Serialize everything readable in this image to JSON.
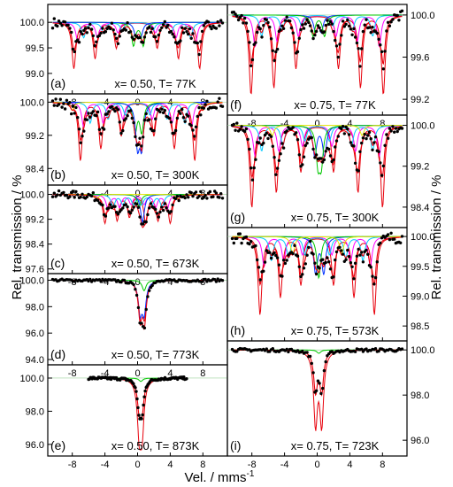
{
  "figure": {
    "ylabel_left": "Rel. transmission / %",
    "ylabel_right": "Rel. transmission / %",
    "xlabel": "Vel. / mms",
    "xlabel_sup": "-1"
  },
  "colors": {
    "data_points": "#000000",
    "total_fit": "#e8000b",
    "components": [
      "#0030ff",
      "#00c800",
      "#00c8ff",
      "#ff00ff",
      "#e6e600",
      "#ff9900"
    ]
  },
  "chart_data": [
    {
      "type": "scatter",
      "panel": "(a)",
      "caption": "x= 0.50, T= 77K",
      "ylim": [
        98.6,
        100.35
      ],
      "yticks": [
        "100.0",
        "99.5",
        "99.0"
      ],
      "xlim": [
        -11,
        11
      ],
      "xticks": [
        "-8",
        "-4",
        "0",
        "4",
        "8"
      ],
      "baseline": 100.0,
      "noise": 0.1,
      "components": [
        {
          "color": "#e8000b",
          "lines": [
            [
              -7.8,
              0.9
            ],
            [
              -5.2,
              0.7
            ],
            [
              -2.6,
              0.5
            ],
            [
              2.4,
              0.5
            ],
            [
              5.0,
              0.7
            ],
            [
              7.6,
              0.9
            ]
          ]
        },
        {
          "color": "#ff00ff",
          "lines": [
            [
              -7.3,
              0.4
            ],
            [
              -4.9,
              0.3
            ],
            [
              -2.4,
              0.2
            ],
            [
              2.2,
              0.2
            ],
            [
              4.7,
              0.3
            ],
            [
              7.1,
              0.4
            ]
          ]
        },
        {
          "color": "#00c8ff",
          "lines": [
            [
              -6.6,
              0.3
            ],
            [
              -4.2,
              0.2
            ],
            [
              -1.9,
              0.15
            ],
            [
              1.9,
              0.15
            ],
            [
              4.1,
              0.2
            ],
            [
              6.5,
              0.3
            ]
          ]
        },
        {
          "color": "#00c800",
          "lines": [
            [
              -0.5,
              0.45
            ],
            [
              0.7,
              0.45
            ]
          ]
        },
        {
          "color": "#0030ff",
          "lines": [
            [
              -0.2,
              0.25
            ],
            [
              0.4,
              0.25
            ]
          ]
        }
      ]
    },
    {
      "type": "scatter",
      "panel": "(b)",
      "caption": "x= 0.50, T= 300K",
      "ylim": [
        98.0,
        100.2
      ],
      "yticks": [
        "100.0",
        "99.2",
        "98.4"
      ],
      "xlim": [
        -11,
        11
      ],
      "xticks": [
        "-8",
        "-4",
        "0",
        "4",
        "8"
      ],
      "baseline": 100.0,
      "noise": 0.12,
      "components": [
        {
          "color": "#e8000b",
          "lines": [
            [
              -7.0,
              1.4
            ],
            [
              -4.5,
              1.1
            ],
            [
              -2.0,
              0.8
            ],
            [
              2.0,
              0.8
            ],
            [
              4.5,
              1.1
            ],
            [
              7.0,
              1.4
            ]
          ]
        },
        {
          "color": "#ff00ff",
          "lines": [
            [
              -6.6,
              0.6
            ],
            [
              -4.2,
              0.5
            ],
            [
              -1.8,
              0.4
            ],
            [
              1.8,
              0.4
            ],
            [
              4.2,
              0.5
            ],
            [
              6.6,
              0.6
            ]
          ]
        },
        {
          "color": "#00c8ff",
          "lines": [
            [
              -5.8,
              0.5
            ],
            [
              -3.6,
              0.4
            ],
            [
              -1.5,
              0.3
            ],
            [
              1.5,
              0.3
            ],
            [
              3.6,
              0.4
            ],
            [
              5.8,
              0.5
            ]
          ]
        },
        {
          "color": "#00c800",
          "lines": [
            [
              -0.3,
              0.7
            ],
            [
              0.5,
              0.7
            ]
          ]
        },
        {
          "color": "#0030ff",
          "lines": [
            [
              0.0,
              1.0
            ],
            [
              0.5,
              1.0
            ]
          ]
        },
        {
          "color": "#e6e600",
          "lines": [
            [
              -8.0,
              0.2
            ],
            [
              8.0,
              0.2
            ]
          ]
        }
      ]
    },
    {
      "type": "scatter",
      "panel": "(c)",
      "caption": "x= 0.50, T= 673K",
      "ylim": [
        97.45,
        100.3
      ],
      "yticks": [
        "100.0",
        "99.2",
        "98.4",
        "97.6"
      ],
      "xlim": [
        -11,
        11
      ],
      "xticks": [
        "-8",
        "-4",
        "0",
        "4",
        "8"
      ],
      "baseline": 100.0,
      "noise": 0.12,
      "components": [
        {
          "color": "#e8000b",
          "lines": [
            [
              -4.0,
              0.9
            ],
            [
              -2.5,
              0.8
            ],
            [
              -1.0,
              0.7
            ],
            [
              1.0,
              0.9
            ],
            [
              2.5,
              0.8
            ],
            [
              4.0,
              0.9
            ]
          ]
        },
        {
          "color": "#ff00ff",
          "lines": [
            [
              -3.6,
              0.5
            ],
            [
              -2.2,
              0.4
            ],
            [
              -0.8,
              0.3
            ],
            [
              0.8,
              0.3
            ],
            [
              2.2,
              0.4
            ],
            [
              3.6,
              0.5
            ]
          ]
        },
        {
          "color": "#00c8ff",
          "lines": [
            [
              -3.0,
              0.4
            ],
            [
              -1.8,
              0.3
            ],
            [
              -0.5,
              0.3
            ],
            [
              0.5,
              0.3
            ],
            [
              1.8,
              0.3
            ],
            [
              3.0,
              0.4
            ]
          ]
        },
        {
          "color": "#0030ff",
          "lines": [
            [
              0.6,
              0.9
            ]
          ]
        },
        {
          "color": "#00c800",
          "lines": [
            [
              0.2,
              0.4
            ]
          ]
        },
        {
          "color": "#e6e600",
          "lines": [
            [
              -5.0,
              0.15
            ],
            [
              5.0,
              0.15
            ]
          ]
        }
      ]
    },
    {
      "type": "scatter",
      "panel": "(d)",
      "caption": "x= 0.50, T= 773K",
      "ylim": [
        93.6,
        100.5
      ],
      "yticks": [
        "100.0",
        "98.0",
        "96.0",
        "94.0"
      ],
      "xlim": [
        -11,
        11
      ],
      "xticks": [
        "-8",
        "-4",
        "0",
        "4",
        "8"
      ],
      "baseline": 100.0,
      "noise": 0.1,
      "components": [
        {
          "color": "#e8000b",
          "lines": [
            [
              0.35,
              2.5
            ],
            [
              0.85,
              2.5
            ]
          ]
        },
        {
          "color": "#0030ff",
          "lines": [
            [
              0.3,
              2.3
            ],
            [
              0.8,
              2.3
            ]
          ]
        },
        {
          "color": "#00c800",
          "lines": [
            [
              0.8,
              0.8
            ]
          ]
        }
      ]
    },
    {
      "type": "scatter",
      "panel": "(e)",
      "caption": "x= 0.50, T= 873K",
      "ylim": [
        95.3,
        100.8
      ],
      "yticks": [
        "100.0",
        "98.0",
        "96.0"
      ],
      "xlim": [
        -11,
        11
      ],
      "xticks": [],
      "xrange_points": [
        -6.0,
        6.0
      ],
      "baseline": 100.0,
      "noise": 0.08,
      "components": [
        {
          "color": "#e8000b",
          "lines": [
            [
              0.2,
              3.0
            ],
            [
              0.55,
              3.0
            ]
          ]
        },
        {
          "color": "#00c800",
          "lines": [
            [
              0.4,
              0.2
            ]
          ]
        }
      ]
    },
    {
      "type": "scatter",
      "panel": "(f)",
      "caption": "x= 0.75, T= 77K",
      "ylim": [
        99.05,
        100.1
      ],
      "yticks": [
        "100.0",
        "99.6",
        "99.2"
      ],
      "xlim": [
        -11,
        11
      ],
      "xticks": [
        "-8",
        "-4",
        "0",
        "4",
        "8"
      ],
      "baseline": 100.0,
      "noise": 0.05,
      "components": [
        {
          "color": "#e8000b",
          "lines": [
            [
              -8.1,
              0.75
            ],
            [
              -5.3,
              0.68
            ],
            [
              -2.6,
              0.5
            ],
            [
              2.6,
              0.5
            ],
            [
              5.3,
              0.68
            ],
            [
              8.1,
              0.75
            ]
          ]
        },
        {
          "color": "#ff00ff",
          "lines": [
            [
              -7.6,
              0.3
            ],
            [
              -4.9,
              0.25
            ],
            [
              -2.3,
              0.2
            ],
            [
              2.3,
              0.2
            ],
            [
              4.9,
              0.25
            ],
            [
              7.6,
              0.3
            ]
          ]
        },
        {
          "color": "#00c8ff",
          "lines": [
            [
              -6.8,
              0.2
            ],
            [
              -4.3,
              0.15
            ],
            [
              -1.9,
              0.1
            ],
            [
              1.9,
              0.1
            ],
            [
              4.3,
              0.15
            ],
            [
              6.8,
              0.2
            ]
          ]
        },
        {
          "color": "#0030ff",
          "lines": [
            [
              -0.2,
              0.15
            ],
            [
              0.5,
              0.15
            ]
          ]
        },
        {
          "color": "#00c800",
          "lines": [
            [
              -0.5,
              0.2
            ],
            [
              0.9,
              0.2
            ]
          ]
        }
      ]
    },
    {
      "type": "scatter",
      "panel": "(g)",
      "caption": "x= 0.75, T= 300K",
      "ylim": [
        98.0,
        100.2
      ],
      "yticks": [
        "100.0",
        "99.2",
        "98.4"
      ],
      "xlim": [
        -11,
        11
      ],
      "xticks": [],
      "baseline": 100.0,
      "noise": 0.1,
      "components": [
        {
          "color": "#e8000b",
          "lines": [
            [
              -8.0,
              1.6
            ],
            [
              -5.0,
              1.3
            ],
            [
              -2.0,
              0.9
            ],
            [
              2.0,
              0.9
            ],
            [
              5.0,
              1.3
            ],
            [
              8.0,
              1.6
            ]
          ]
        },
        {
          "color": "#ff00ff",
          "lines": [
            [
              -7.6,
              0.6
            ],
            [
              -4.7,
              0.5
            ],
            [
              -1.8,
              0.4
            ],
            [
              1.8,
              0.4
            ],
            [
              4.7,
              0.5
            ],
            [
              7.6,
              0.6
            ]
          ]
        },
        {
          "color": "#00c8ff",
          "lines": [
            [
              -6.8,
              0.5
            ],
            [
              -4.2,
              0.4
            ],
            [
              -1.5,
              0.3
            ],
            [
              1.5,
              0.3
            ],
            [
              4.2,
              0.4
            ],
            [
              6.8,
              0.5
            ]
          ]
        },
        {
          "color": "#0030ff",
          "lines": [
            [
              -0.3,
              0.6
            ],
            [
              0.9,
              0.6
            ]
          ]
        },
        {
          "color": "#00c800",
          "lines": [
            [
              0.1,
              0.7
            ],
            [
              0.5,
              0.7
            ]
          ]
        },
        {
          "color": "#e6e600",
          "lines": [
            [
              -5.5,
              0.2
            ],
            [
              5.5,
              0.2
            ]
          ]
        }
      ]
    },
    {
      "type": "scatter",
      "panel": "(h)",
      "caption": "x= 0.75, T= 573K",
      "ylim": [
        98.25,
        100.15
      ],
      "yticks": [
        "100.0",
        "99.5",
        "99.0",
        "98.5"
      ],
      "xlim": [
        -11,
        11
      ],
      "xticks": [],
      "baseline": 100.0,
      "noise": 0.1,
      "components": [
        {
          "color": "#e8000b",
          "lines": [
            [
              -7.0,
              1.3
            ],
            [
              -4.5,
              1.0
            ],
            [
              -2.0,
              0.8
            ],
            [
              2.0,
              0.8
            ],
            [
              4.5,
              1.0
            ],
            [
              7.0,
              1.3
            ]
          ]
        },
        {
          "color": "#ff00ff",
          "lines": [
            [
              -6.5,
              0.5
            ],
            [
              -4.1,
              0.4
            ],
            [
              -1.8,
              0.3
            ],
            [
              1.8,
              0.3
            ],
            [
              4.1,
              0.4
            ],
            [
              6.5,
              0.5
            ]
          ]
        },
        {
          "color": "#00c8ff",
          "lines": [
            [
              -5.6,
              0.4
            ],
            [
              -3.5,
              0.35
            ],
            [
              -1.5,
              0.3
            ],
            [
              1.5,
              0.3
            ],
            [
              3.5,
              0.35
            ],
            [
              5.6,
              0.4
            ]
          ]
        },
        {
          "color": "#0030ff",
          "lines": [
            [
              -0.2,
              0.6
            ],
            [
              0.8,
              0.6
            ]
          ]
        },
        {
          "color": "#00c800",
          "lines": [
            [
              0.2,
              0.7
            ]
          ]
        },
        {
          "color": "#e6e600",
          "lines": [
            [
              -3.0,
              0.3
            ],
            [
              3.0,
              0.3
            ]
          ]
        }
      ]
    },
    {
      "type": "scatter",
      "panel": "(i)",
      "caption": "x= 0.75, T= 723K",
      "ylim": [
        95.3,
        100.4
      ],
      "yticks": [
        "100.0",
        "98.0",
        "96.0"
      ],
      "xlim": [
        -11,
        11
      ],
      "xticks": [],
      "baseline": 100.0,
      "noise": 0.07,
      "components": [
        {
          "color": "#e8000b",
          "lines": [
            [
              -0.2,
              3.2
            ],
            [
              0.55,
              3.2
            ]
          ]
        },
        {
          "color": "#00c800",
          "lines": [
            [
              0.2,
              0.15
            ]
          ]
        }
      ]
    }
  ]
}
